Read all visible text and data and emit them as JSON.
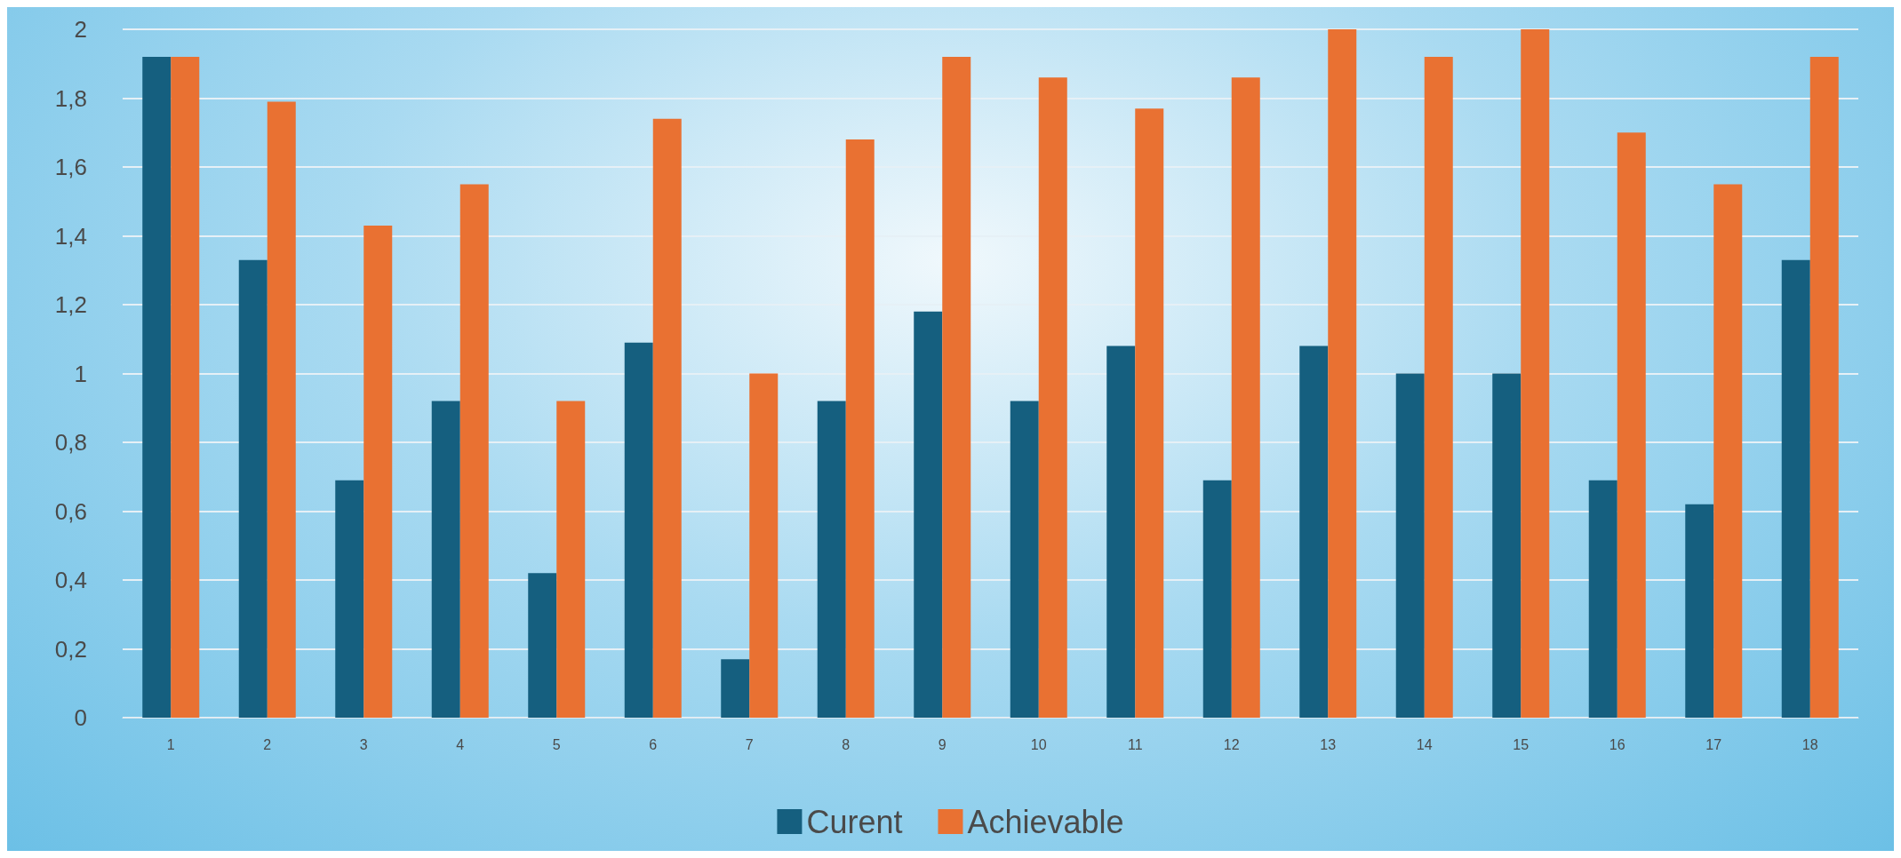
{
  "chart_data": {
    "type": "bar",
    "categories": [
      "1",
      "2",
      "3",
      "4",
      "5",
      "6",
      "7",
      "8",
      "9",
      "10",
      "11",
      "12",
      "13",
      "14",
      "15",
      "16",
      "17",
      "18"
    ],
    "series": [
      {
        "name": "Curent",
        "color": "#155f7f",
        "values": [
          1.92,
          1.33,
          0.69,
          0.92,
          0.42,
          1.09,
          0.17,
          0.92,
          1.18,
          0.92,
          1.08,
          0.69,
          1.08,
          1.0,
          1.0,
          0.69,
          0.62,
          1.33
        ]
      },
      {
        "name": "Achievable",
        "color": "#e97132",
        "values": [
          1.92,
          1.79,
          1.43,
          1.55,
          0.92,
          1.74,
          1.0,
          1.68,
          1.92,
          1.86,
          1.77,
          1.86,
          2.0,
          1.92,
          2.0,
          1.7,
          1.55,
          1.92
        ]
      }
    ],
    "ylim": [
      0,
      2
    ],
    "yticks": [
      0,
      {
        "value": 0.2,
        "label": "0,2"
      },
      {
        "value": 0.4,
        "label": "0,4"
      },
      {
        "value": 0.6,
        "label": "0,6"
      },
      {
        "value": 0.8,
        "label": "0,8"
      },
      1,
      {
        "value": 1.2,
        "label": "1,2"
      },
      {
        "value": 1.4,
        "label": "1,4"
      },
      {
        "value": 1.6,
        "label": "1,6"
      },
      {
        "value": 1.8,
        "label": "1,8"
      },
      2
    ],
    "grid": "y",
    "legend": "bottom"
  }
}
